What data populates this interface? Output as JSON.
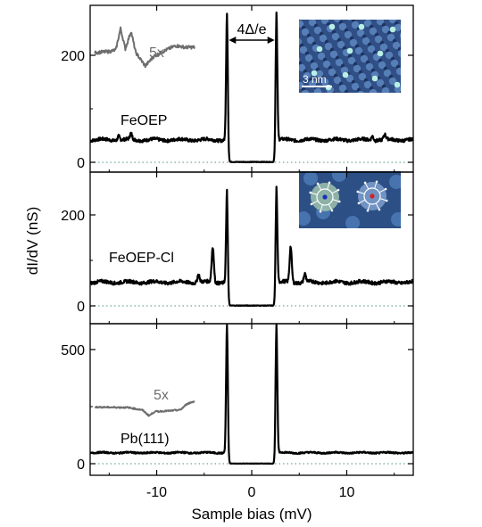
{
  "chart_data": {
    "type": "line",
    "xlabel": "Sample bias (mV)",
    "ylabel": "dI/dV (nS)",
    "xlim": [
      -17,
      17
    ],
    "x_ticks": [
      "-10",
      "0",
      "10"
    ],
    "x_tick_values": [
      -10,
      0,
      10
    ],
    "colors": {
      "trace": "#000000",
      "inset_trace": "#6e6e6e",
      "zero_line": "#6fa8a0"
    },
    "gap_annotation": "4Δ/e",
    "panels": [
      {
        "label": "FeOEP",
        "ylim": [
          0,
          290
        ],
        "y_ticks": [
          "0",
          "200"
        ],
        "y_tick_values": [
          0,
          200
        ],
        "baseline": 42,
        "peaks": [
          {
            "x": -14,
            "height": 8
          },
          {
            "x": -12.7,
            "height": 11
          },
          {
            "x": -2.6,
            "height": 238
          },
          {
            "x": 2.6,
            "height": 238
          },
          {
            "x": 12.7,
            "height": 8
          },
          {
            "x": 14,
            "height": 9
          }
        ],
        "magnified_label": "5x",
        "magnified_x_range": [
          -16.5,
          -6
        ],
        "magnified_points": [
          {
            "x": -16.5,
            "y": 205
          },
          {
            "x": -15,
            "y": 207
          },
          {
            "x": -14.3,
            "y": 210
          },
          {
            "x": -13.8,
            "y": 250
          },
          {
            "x": -13.3,
            "y": 212
          },
          {
            "x": -12.7,
            "y": 245
          },
          {
            "x": -12.2,
            "y": 205
          },
          {
            "x": -11.2,
            "y": 180
          },
          {
            "x": -10.3,
            "y": 198
          },
          {
            "x": -9,
            "y": 210
          },
          {
            "x": -8,
            "y": 218
          },
          {
            "x": -7,
            "y": 215
          },
          {
            "x": -6,
            "y": 215
          }
        ],
        "inset_scale_label": "3 nm",
        "inset_image": "stm-topograph-feoep-lattice"
      },
      {
        "label": "FeOEP-Cl",
        "ylim": [
          0,
          290
        ],
        "y_ticks": [
          "0",
          "200"
        ],
        "y_tick_values": [
          0,
          200
        ],
        "baseline": 52,
        "peaks": [
          {
            "x": -5.6,
            "height": 18
          },
          {
            "x": -4.1,
            "height": 78
          },
          {
            "x": -2.6,
            "height": 200
          },
          {
            "x": 2.6,
            "height": 210
          },
          {
            "x": 4.1,
            "height": 78
          },
          {
            "x": 5.6,
            "height": 18
          }
        ],
        "inset_image": "stm-topograph-feoep-cl-molecules"
      },
      {
        "label": "Pb(111)",
        "ylim": [
          0,
          580
        ],
        "y_ticks": [
          "0",
          "500"
        ],
        "y_tick_values": [
          0,
          500
        ],
        "baseline": 48,
        "peaks": [
          {
            "x": -2.6,
            "height": 560
          },
          {
            "x": 2.6,
            "height": 560
          }
        ],
        "magnified_label": "5x",
        "magnified_x_range": [
          -16.5,
          -6
        ],
        "magnified_points": [
          {
            "x": -16.5,
            "y": 248
          },
          {
            "x": -13,
            "y": 246
          },
          {
            "x": -11.5,
            "y": 235
          },
          {
            "x": -10.8,
            "y": 210
          },
          {
            "x": -10.2,
            "y": 228
          },
          {
            "x": -8.5,
            "y": 232
          },
          {
            "x": -7.5,
            "y": 236
          },
          {
            "x": -6.8,
            "y": 262
          },
          {
            "x": -6,
            "y": 274
          }
        ]
      }
    ]
  }
}
